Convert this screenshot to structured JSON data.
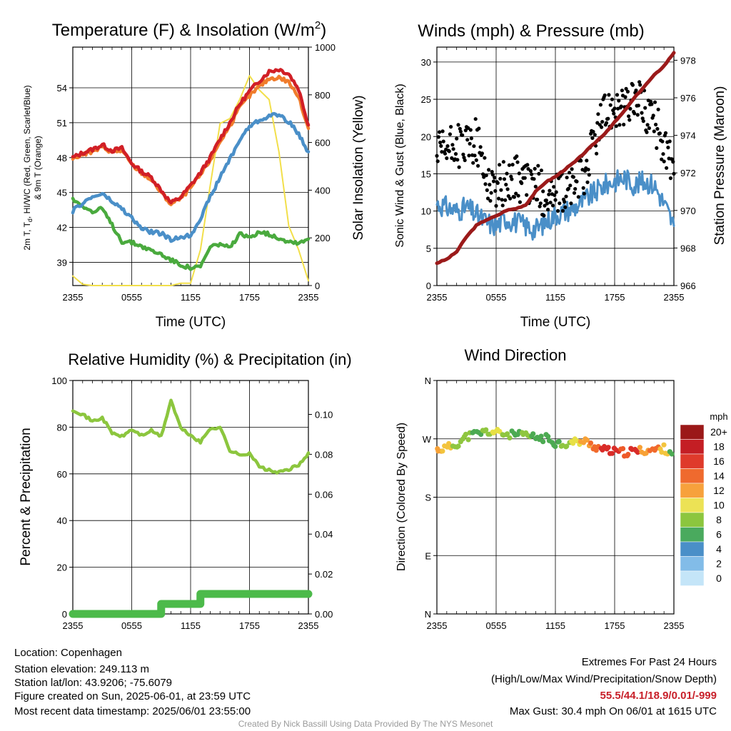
{
  "chart_data": [
    {
      "type": "line",
      "title": "Temperature (F) & Insolation (W/m²)",
      "xlabel": "Time (UTC)",
      "ylabel": "2m T, Td, HI/WC (Red, Green, Scarlet/Blue) & 9m T (Orange)",
      "ylabel_lines": [
        "2m T, T",
        "d",
        ", HI/WC (Red, Green, Scarlet/Blue)",
        "& 9m T (Orange)"
      ],
      "y2label": "Solar Insolation (Yellow)",
      "x_ticks": [
        "2355",
        "0555",
        "1155",
        "1755",
        "2355"
      ],
      "ylim": [
        37,
        57.5
      ],
      "yticks": [
        39,
        42,
        45,
        48,
        51,
        54
      ],
      "y2lim": [
        0,
        1000
      ],
      "y2ticks": [
        0,
        200,
        400,
        600,
        800,
        1000
      ],
      "x_hours": [
        0,
        1,
        2,
        3,
        4,
        5,
        6,
        7,
        8,
        9,
        10,
        11,
        12,
        13,
        14,
        15,
        16,
        17,
        18,
        19,
        20,
        21,
        22,
        23,
        24
      ],
      "series": [
        {
          "color": "#d11f26",
          "values": [
            48.0,
            48.4,
            48.7,
            49.1,
            48.6,
            48.8,
            47.5,
            46.8,
            46.3,
            45.2,
            44.1,
            44.6,
            45.6,
            46.7,
            48.0,
            49.6,
            51.0,
            52.6,
            53.7,
            54.6,
            55.4,
            55.6,
            55.2,
            53.9,
            50.8
          ]
        },
        {
          "color": "#f07c2c",
          "values": [
            47.9,
            48.3,
            48.5,
            48.9,
            48.5,
            48.6,
            47.4,
            46.7,
            46.1,
            45.0,
            44.0,
            44.5,
            45.4,
            46.5,
            47.8,
            49.4,
            50.7,
            52.3,
            53.3,
            54.1,
            54.8,
            54.9,
            54.5,
            53.2,
            50.5
          ]
        },
        {
          "color": "#4a8fc8",
          "values": [
            43.4,
            44.1,
            44.6,
            44.9,
            44.2,
            43.6,
            42.8,
            41.9,
            41.6,
            41.5,
            40.9,
            41.2,
            41.3,
            42.8,
            44.6,
            46.3,
            47.9,
            49.5,
            50.7,
            51.2,
            51.6,
            51.7,
            51.1,
            50.0,
            48.5
          ]
        },
        {
          "color": "#4aaa3e",
          "values": [
            44.4,
            43.9,
            43.3,
            43.6,
            42.2,
            40.8,
            40.7,
            40.4,
            40.0,
            39.7,
            39.2,
            38.8,
            38.5,
            38.6,
            40.3,
            40.6,
            40.2,
            41.4,
            41.1,
            41.7,
            41.4,
            41.1,
            40.8,
            40.7,
            41.0
          ]
        }
      ],
      "insolation": {
        "color": "#f2df4a",
        "values": [
          40,
          5,
          0,
          0,
          0,
          0,
          0,
          0,
          0,
          0,
          0,
          10,
          10,
          150,
          420,
          680,
          700,
          780,
          880,
          820,
          780,
          560,
          250,
          150,
          20
        ]
      }
    },
    {
      "type": "scatter",
      "title": "Winds (mph) & Pressure (mb)",
      "xlabel": "Time (UTC)",
      "ylabel": "Sonic Wind & Gust (Blue, Black)",
      "y2label": "Station Pressure (Maroon)",
      "x_ticks": [
        "2355",
        "0555",
        "1155",
        "1755",
        "2355"
      ],
      "ylim": [
        0,
        32
      ],
      "yticks": [
        0,
        5,
        10,
        15,
        20,
        25,
        30
      ],
      "y2lim": [
        966,
        978.7
      ],
      "y2ticks": [
        966,
        968,
        970,
        972,
        974,
        976,
        978
      ],
      "x_hours": [
        0,
        1,
        2,
        3,
        4,
        5,
        6,
        7,
        8,
        9,
        10,
        11,
        12,
        13,
        14,
        15,
        16,
        17,
        18,
        19,
        20,
        21,
        22,
        23,
        24
      ],
      "series": [
        {
          "color": "#4a8fc8",
          "values": [
            11,
            10.5,
            10,
            10.5,
            9.5,
            8.5,
            8,
            9,
            8.5,
            8,
            7.5,
            8.5,
            9.5,
            10,
            10.5,
            11.5,
            12.5,
            13.5,
            14,
            14.5,
            13.5,
            14,
            13.5,
            11,
            8
          ]
        },
        {
          "color": "#000000",
          "values": [
            17.5,
            18,
            19,
            18.5,
            19.5,
            14.5,
            13,
            14,
            14.5,
            13.5,
            13.5,
            12,
            12,
            12.5,
            14,
            15,
            20,
            23,
            24.5,
            23.5,
            25,
            24,
            22,
            19,
            15
          ]
        },
        {
          "color": "#9b1a1a",
          "values": [
            967.2,
            967.4,
            967.8,
            968.6,
            969.2,
            969.5,
            969.7,
            970.0,
            970.1,
            970.3,
            971.0,
            971.5,
            971.8,
            972.2,
            972.6,
            973.1,
            973.6,
            974.1,
            974.7,
            975.3,
            976.0,
            976.6,
            977.2,
            977.7,
            978.4
          ]
        }
      ]
    },
    {
      "type": "line",
      "title": "Relative Humidity (%) & Precipitation (in)",
      "ylabel": "Percent & Precipitation",
      "x_ticks": [
        "2355",
        "0555",
        "1155",
        "1755",
        "2355"
      ],
      "ylim": [
        0,
        100
      ],
      "yticks": [
        0,
        20,
        40,
        60,
        80,
        100
      ],
      "y2lim": [
        0,
        0.117
      ],
      "y2ticks": [
        "0.00",
        "0.02",
        "0.04",
        "0.06",
        "0.08",
        "0.10"
      ],
      "x_hours": [
        0,
        1,
        2,
        3,
        4,
        5,
        6,
        7,
        8,
        9,
        10,
        11,
        12,
        13,
        14,
        15,
        16,
        17,
        18,
        19,
        20,
        21,
        22,
        23,
        24
      ],
      "series": [
        {
          "color": "#8cc63e",
          "values": [
            87.5,
            85.5,
            82.5,
            84.0,
            77.5,
            76.0,
            79.0,
            76.5,
            78.5,
            76.0,
            91.5,
            79.5,
            76.5,
            73.5,
            79.5,
            80.0,
            70.0,
            68.0,
            69.0,
            63.0,
            61.5,
            60.5,
            62.0,
            63.5,
            69.0
          ]
        },
        {
          "color": "#4cba4a",
          "values": [
            0,
            0,
            0,
            0,
            0,
            0,
            0,
            0,
            0,
            0.005,
            0.005,
            0.005,
            0.005,
            0.01,
            0.01,
            0.01,
            0.01,
            0.01,
            0.01,
            0.01,
            0.01,
            0.01,
            0.01,
            0.01,
            0.01
          ]
        }
      ]
    },
    {
      "type": "scatter",
      "title": "Wind Direction",
      "ylabel": "Direction (Colored By Speed)",
      "x_ticks": [
        "2355",
        "0555",
        "1155",
        "1755",
        "2355"
      ],
      "yticks": [
        "N",
        "E",
        "S",
        "W",
        "N"
      ],
      "ylim": [
        0,
        360
      ],
      "x_hours": [
        0,
        1,
        2,
        3,
        4,
        5,
        6,
        7,
        8,
        9,
        10,
        11,
        12,
        13,
        14,
        15,
        16,
        17,
        18,
        19,
        20,
        21,
        22,
        23,
        24
      ],
      "directions": [
        253,
        256,
        262,
        273,
        278,
        281,
        280,
        277,
        276,
        275,
        272,
        271,
        264,
        262,
        265,
        266,
        258,
        253,
        250,
        249,
        251,
        252,
        253,
        255,
        248
      ],
      "speed_colors": [
        "#f7a136",
        "#f3c43d",
        "#8fc63f",
        "#8fc63f",
        "#4caa52",
        "#8fc63f",
        "#e7e045",
        "#8fc63f",
        "#4caa52",
        "#8fc63f",
        "#4caa52",
        "#4caa52",
        "#4caa52",
        "#8fc63f",
        "#e7e045",
        "#f7a136",
        "#f16a2c",
        "#d92c28",
        "#d92c28",
        "#ee5a29",
        "#d92c28",
        "#f7a136",
        "#f16a2c",
        "#f3c43d",
        "#4caa52"
      ],
      "colorbar": {
        "title": "mph",
        "labels": [
          "20+",
          "18",
          "16",
          "14",
          "12",
          "10",
          "8",
          "6",
          "4",
          "2",
          "0"
        ],
        "colors": [
          "#9b1818",
          "#c41e24",
          "#df3a2b",
          "#ef6a2e",
          "#f7a13c",
          "#ece255",
          "#8cc63e",
          "#4aaa5e",
          "#4a8fc8",
          "#82bce8",
          "#c4e5f8"
        ]
      }
    }
  ],
  "footer": {
    "location": "Location: Copenhagen",
    "elevation": "Station elevation: 249.113 m",
    "latlon": "Station lat/lon: 43.9206; -75.6079",
    "created": "Figure created on Sun, 2025-06-01, at 23:59 UTC",
    "recent": "Most recent data timestamp: 2025/06/01 23:55:00",
    "extremes_title": "Extremes For Past 24 Hours",
    "extremes_sub": "(High/Low/Max Wind/Precipitation/Snow Depth)",
    "extremes_values": "55.5/44.1/18.9/0.01/-999",
    "max_gust": "Max Gust: 30.4 mph On 06/01 at 1615 UTC",
    "credit": "Created By Nick Bassill Using Data Provided By The NYS Mesonet"
  }
}
